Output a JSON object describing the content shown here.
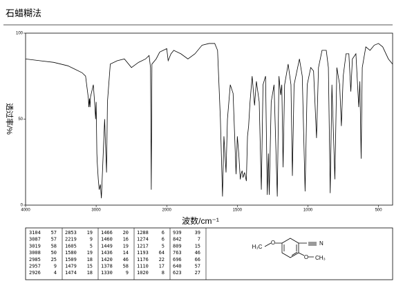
{
  "chart_data": {
    "type": "line",
    "title": "石蜡糊法",
    "ylabel": "透过率/%",
    "xlabel": "波数/cm⁻¹",
    "xlim": [
      4000,
      400
    ],
    "x_scale_break": 2000,
    "xticks": [
      4000,
      3000,
      2000,
      1500,
      1000,
      500
    ],
    "ylim": [
      0,
      100
    ],
    "yticks": [
      0,
      50,
      100
    ],
    "color": "#000000",
    "series": [
      {
        "name": null,
        "color": "#000000",
        "x": [
          4000,
          3800,
          3600,
          3400,
          3300,
          3200,
          3150,
          3110,
          3104,
          3095,
          3087,
          3080,
          3040,
          3019,
          3008,
          3000,
          2990,
          2985,
          2970,
          2957,
          2940,
          2926,
          2910,
          2880,
          2853,
          2840,
          2800,
          2700,
          2600,
          2500,
          2400,
          2300,
          2250,
          2230,
          2219,
          2210,
          2150,
          2100,
          2050,
          2000,
          1990,
          1970,
          1950,
          1900,
          1850,
          1800,
          1750,
          1700,
          1660,
          1640,
          1620,
          1605,
          1595,
          1580,
          1570,
          1550,
          1530,
          1509,
          1500,
          1490,
          1479,
          1474,
          1466,
          1460,
          1449,
          1436,
          1428,
          1420,
          1410,
          1395,
          1378,
          1365,
          1345,
          1330,
          1318,
          1300,
          1288,
          1280,
          1274,
          1260,
          1240,
          1217,
          1205,
          1193,
          1185,
          1176,
          1165,
          1140,
          1120,
          1110,
          1098,
          1060,
          1040,
          1020,
          1005,
          980,
          960,
          939,
          925,
          900,
          870,
          855,
          842,
          830,
          809,
          795,
          775,
          763,
          750,
          730,
          710,
          696,
          685,
          660,
          640,
          632,
          623,
          615,
          590,
          560,
          530,
          500,
          470,
          430,
          400
        ],
        "values": [
          85,
          84,
          83,
          81,
          79,
          77,
          75,
          62,
          57,
          62,
          57,
          63,
          70,
          58,
          50,
          60,
          30,
          25,
          15,
          9,
          12,
          4,
          20,
          50,
          19,
          60,
          82,
          84,
          85,
          80,
          83,
          85,
          87,
          80,
          9,
          82,
          85,
          89,
          90,
          91,
          84,
          88,
          90,
          88,
          85,
          88,
          93,
          94,
          94,
          90,
          50,
          5,
          40,
          19,
          50,
          70,
          65,
          18,
          40,
          30,
          15,
          18,
          20,
          16,
          19,
          14,
          40,
          46,
          60,
          75,
          58,
          72,
          60,
          9,
          70,
          75,
          6,
          30,
          6,
          60,
          70,
          5,
          75,
          64,
          70,
          22,
          70,
          82,
          70,
          17,
          70,
          85,
          75,
          8,
          70,
          80,
          78,
          39,
          80,
          90,
          90,
          80,
          7,
          70,
          15,
          80,
          70,
          46,
          75,
          88,
          88,
          66,
          85,
          88,
          57,
          72,
          27,
          80,
          92,
          90,
          93,
          94,
          92,
          85,
          82
        ]
      }
    ]
  },
  "peak_table": {
    "columns": [
      [
        [
          3104,
          57
        ],
        [
          3087,
          57
        ],
        [
          3019,
          58
        ],
        [
          3008,
          50
        ],
        [
          2985,
          25
        ],
        [
          2957,
          9
        ],
        [
          2926,
          4
        ]
      ],
      [
        [
          2853,
          19
        ],
        [
          2219,
          9
        ],
        [
          1605,
          5
        ],
        [
          1580,
          19
        ],
        [
          1509,
          18
        ],
        [
          1479,
          15
        ],
        [
          1474,
          18
        ]
      ],
      [
        [
          1466,
          20
        ],
        [
          1460,
          16
        ],
        [
          1449,
          19
        ],
        [
          1436,
          14
        ],
        [
          1420,
          46
        ],
        [
          1378,
          58
        ],
        [
          1330,
          9
        ]
      ],
      [
        [
          1288,
          6
        ],
        [
          1274,
          6
        ],
        [
          1217,
          5
        ],
        [
          1193,
          64
        ],
        [
          1176,
          22
        ],
        [
          1110,
          17
        ],
        [
          1020,
          8
        ]
      ],
      [
        [
          939,
          39
        ],
        [
          842,
          7
        ],
        [
          809,
          15
        ],
        [
          763,
          46
        ],
        [
          696,
          66
        ],
        [
          640,
          57
        ],
        [
          623,
          27
        ]
      ]
    ]
  },
  "structure": {
    "left": "H₃C",
    "nitrile": "N",
    "bottom": "CH₃",
    "oxygen1": "O",
    "oxygen2": "O"
  }
}
